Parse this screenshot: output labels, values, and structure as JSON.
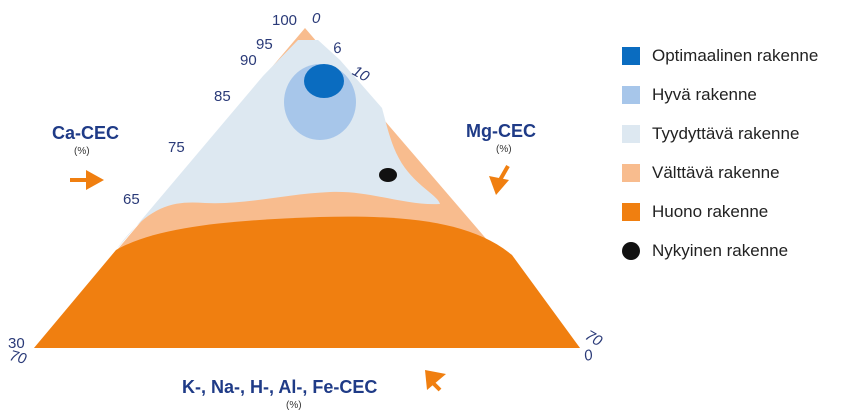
{
  "diagram": {
    "zones": [
      {
        "key": "optimal",
        "label": "Optimaalinen rakenne",
        "color": "#0a6cc0"
      },
      {
        "key": "good",
        "label": "Hyvä rakenne",
        "color": "#a7c6ea"
      },
      {
        "key": "satisfactory",
        "label": "Tyydyttävä rakenne",
        "color": "#dde8f1"
      },
      {
        "key": "avoid",
        "label": "Välttävä rakenne",
        "color": "#f8bc8e"
      },
      {
        "key": "poor",
        "label": "Huono rakenne",
        "color": "#f07f10"
      },
      {
        "key": "current",
        "label": "Nykyinen rakenne",
        "color": "#111111"
      }
    ],
    "axes": {
      "ca": {
        "title": "Ca-CEC",
        "unit": "(%)"
      },
      "mg": {
        "title": "Mg-CEC",
        "unit": "(%)"
      },
      "k": {
        "title": "K-, Na-, H-, Al-, Fe-CEC",
        "unit": "(%)"
      }
    },
    "ticks": {
      "ca": [
        "100",
        "95",
        "90",
        "85",
        "75",
        "65",
        "30"
      ],
      "mg": [
        "0",
        "6",
        "10",
        "70"
      ],
      "k_left": "70",
      "k_right": "0"
    },
    "arrow_color": "#f07f10"
  }
}
